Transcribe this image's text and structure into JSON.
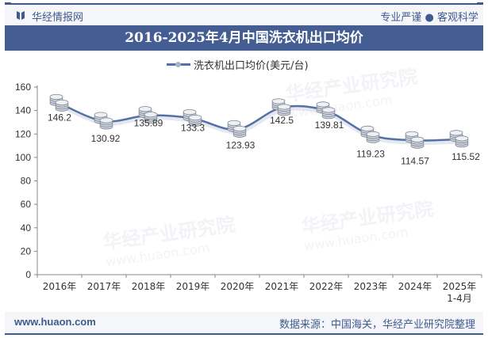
{
  "header": {
    "brand": "华经情报网",
    "slogan": "专业严谨 ● 客观科学",
    "logo_icon": "book-icon"
  },
  "title": "2016-2025年4月中国洗衣机出口均价",
  "legend": {
    "label": "洗衣机出口均价(美元/台)"
  },
  "footer": {
    "url": "www.huaon.com",
    "source": "数据来源：中国海关，华经产业研究院整理"
  },
  "watermark": {
    "text": "华经产业研究院",
    "url": "www.huaon.com"
  },
  "colors": {
    "accent": "#445e93",
    "line": "#5470a6",
    "header_bg": "#f4f6fa"
  },
  "chart_data": {
    "type": "line",
    "title": "2016-2025年4月中国洗衣机出口均价",
    "categories": [
      "2016年",
      "2017年",
      "2018年",
      "2019年",
      "2020年",
      "2021年",
      "2022年",
      "2023年",
      "2024年",
      "2025年\n1-4月"
    ],
    "series": [
      {
        "name": "洗衣机出口均价(美元/台)",
        "values": [
          146.2,
          130.92,
          135.89,
          133.3,
          123.93,
          142.5,
          139.81,
          119.23,
          114.57,
          115.52
        ],
        "marker": "coin-stack-icon",
        "smooth": true
      }
    ],
    "xlabel": "",
    "ylabel": "",
    "ylim": [
      0,
      160
    ],
    "yticks": [
      0,
      20,
      40,
      60,
      80,
      100,
      120,
      140,
      160
    ],
    "grid": false,
    "legend_position": "top"
  }
}
